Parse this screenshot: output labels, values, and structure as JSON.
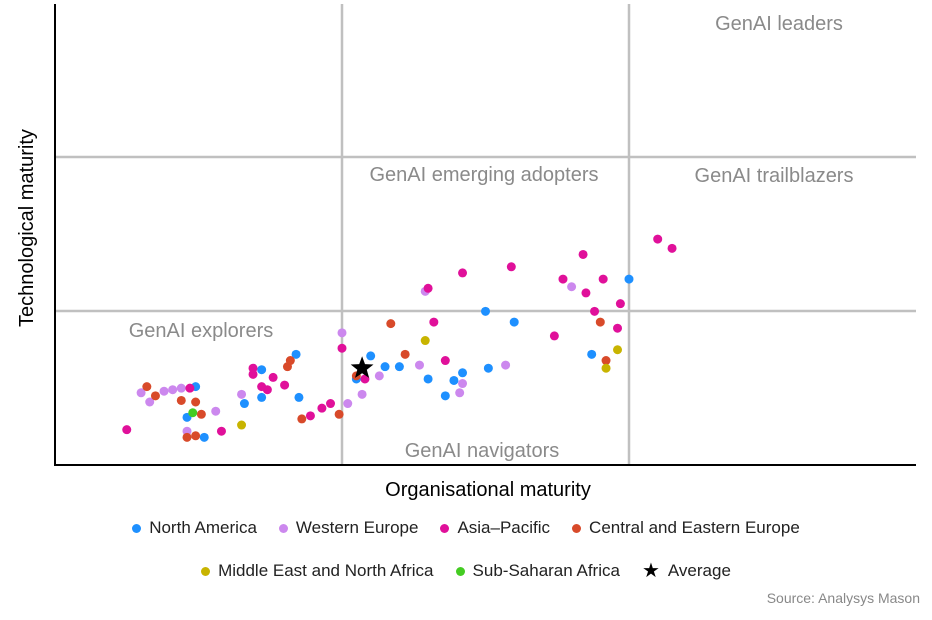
{
  "chart_data": {
    "type": "scatter",
    "title": "",
    "xlabel": "Organisational maturity",
    "ylabel": "Technological maturity",
    "xlim": [
      0,
      3
    ],
    "ylim": [
      0,
      3
    ],
    "grid": true,
    "legend_position": "bottom",
    "quadrant_labels": [
      "GenAI leaders",
      "GenAI emerging adopters",
      "GenAI trailblazers",
      "GenAI explorers",
      "GenAI navigators"
    ],
    "series": [
      {
        "name": "North America",
        "color": "#1e90ff",
        "marker": "circle",
        "points": [
          [
            0.49,
            0.51
          ],
          [
            0.46,
            0.31
          ],
          [
            0.52,
            0.18
          ],
          [
            0.66,
            0.4
          ],
          [
            0.72,
            0.62
          ],
          [
            0.72,
            0.44
          ],
          [
            0.84,
            0.72
          ],
          [
            0.85,
            0.44
          ],
          [
            1.05,
            0.56
          ],
          [
            1.1,
            0.71
          ],
          [
            1.15,
            0.64
          ],
          [
            1.2,
            0.64
          ],
          [
            1.3,
            0.56
          ],
          [
            1.36,
            0.45
          ],
          [
            1.39,
            0.55
          ],
          [
            1.42,
            0.6
          ],
          [
            1.5,
            1.0
          ],
          [
            1.51,
            0.63
          ],
          [
            1.6,
            0.93
          ],
          [
            1.87,
            0.72
          ],
          [
            2.0,
            1.21
          ]
        ]
      },
      {
        "name": "Western Europe",
        "color": "#cc88ee",
        "marker": "circle",
        "points": [
          [
            0.3,
            0.47
          ],
          [
            0.33,
            0.41
          ],
          [
            0.38,
            0.48
          ],
          [
            0.41,
            0.49
          ],
          [
            0.44,
            0.5
          ],
          [
            0.46,
            0.22
          ],
          [
            0.56,
            0.35
          ],
          [
            0.65,
            0.46
          ],
          [
            1.0,
            0.86
          ],
          [
            1.02,
            0.4
          ],
          [
            1.07,
            0.46
          ],
          [
            1.13,
            0.58
          ],
          [
            1.27,
            0.65
          ],
          [
            1.29,
            1.13
          ],
          [
            1.41,
            0.47
          ],
          [
            1.42,
            0.53
          ],
          [
            1.57,
            0.65
          ],
          [
            1.8,
            1.16
          ]
        ]
      },
      {
        "name": "Asia–Pacific",
        "color": "#e0109a",
        "marker": "circle",
        "points": [
          [
            0.25,
            0.23
          ],
          [
            0.47,
            0.5
          ],
          [
            0.58,
            0.22
          ],
          [
            0.69,
            0.63
          ],
          [
            0.69,
            0.59
          ],
          [
            0.72,
            0.51
          ],
          [
            0.74,
            0.49
          ],
          [
            0.76,
            0.57
          ],
          [
            0.8,
            0.52
          ],
          [
            0.89,
            0.32
          ],
          [
            0.93,
            0.37
          ],
          [
            0.96,
            0.4
          ],
          [
            1.0,
            0.76
          ],
          [
            1.08,
            0.56
          ],
          [
            1.3,
            1.15
          ],
          [
            1.32,
            0.93
          ],
          [
            1.36,
            0.68
          ],
          [
            1.42,
            1.25
          ],
          [
            1.59,
            1.29
          ],
          [
            1.74,
            0.84
          ],
          [
            1.77,
            1.21
          ],
          [
            1.84,
            1.37
          ],
          [
            1.85,
            1.12
          ],
          [
            1.88,
            1.0
          ],
          [
            1.91,
            1.21
          ],
          [
            1.96,
            0.89
          ],
          [
            1.97,
            1.05
          ],
          [
            2.1,
            1.47
          ],
          [
            2.15,
            1.41
          ]
        ]
      },
      {
        "name": "Central and Eastern Europe",
        "color": "#d84a2a",
        "marker": "circle",
        "points": [
          [
            0.32,
            0.51
          ],
          [
            0.35,
            0.45
          ],
          [
            0.44,
            0.42
          ],
          [
            0.46,
            0.18
          ],
          [
            0.49,
            0.41
          ],
          [
            0.49,
            0.19
          ],
          [
            0.51,
            0.33
          ],
          [
            0.81,
            0.64
          ],
          [
            0.82,
            0.68
          ],
          [
            0.86,
            0.3
          ],
          [
            0.99,
            0.33
          ],
          [
            1.05,
            0.58
          ],
          [
            1.17,
            0.92
          ],
          [
            1.22,
            0.72
          ],
          [
            1.9,
            0.93
          ],
          [
            1.92,
            0.68
          ]
        ]
      },
      {
        "name": "Middle East and North Africa",
        "color": "#c8b400",
        "marker": "circle",
        "points": [
          [
            0.65,
            0.26
          ],
          [
            1.29,
            0.81
          ],
          [
            1.92,
            0.63
          ],
          [
            1.96,
            0.75
          ]
        ]
      },
      {
        "name": "Sub-Saharan Africa",
        "color": "#44cc22",
        "marker": "circle",
        "points": [
          [
            0.48,
            0.34
          ]
        ]
      },
      {
        "name": "Average",
        "color": "#000000",
        "marker": "star",
        "points": [
          [
            1.07,
            0.63
          ]
        ]
      }
    ],
    "source": "Source: Analysys Mason"
  }
}
